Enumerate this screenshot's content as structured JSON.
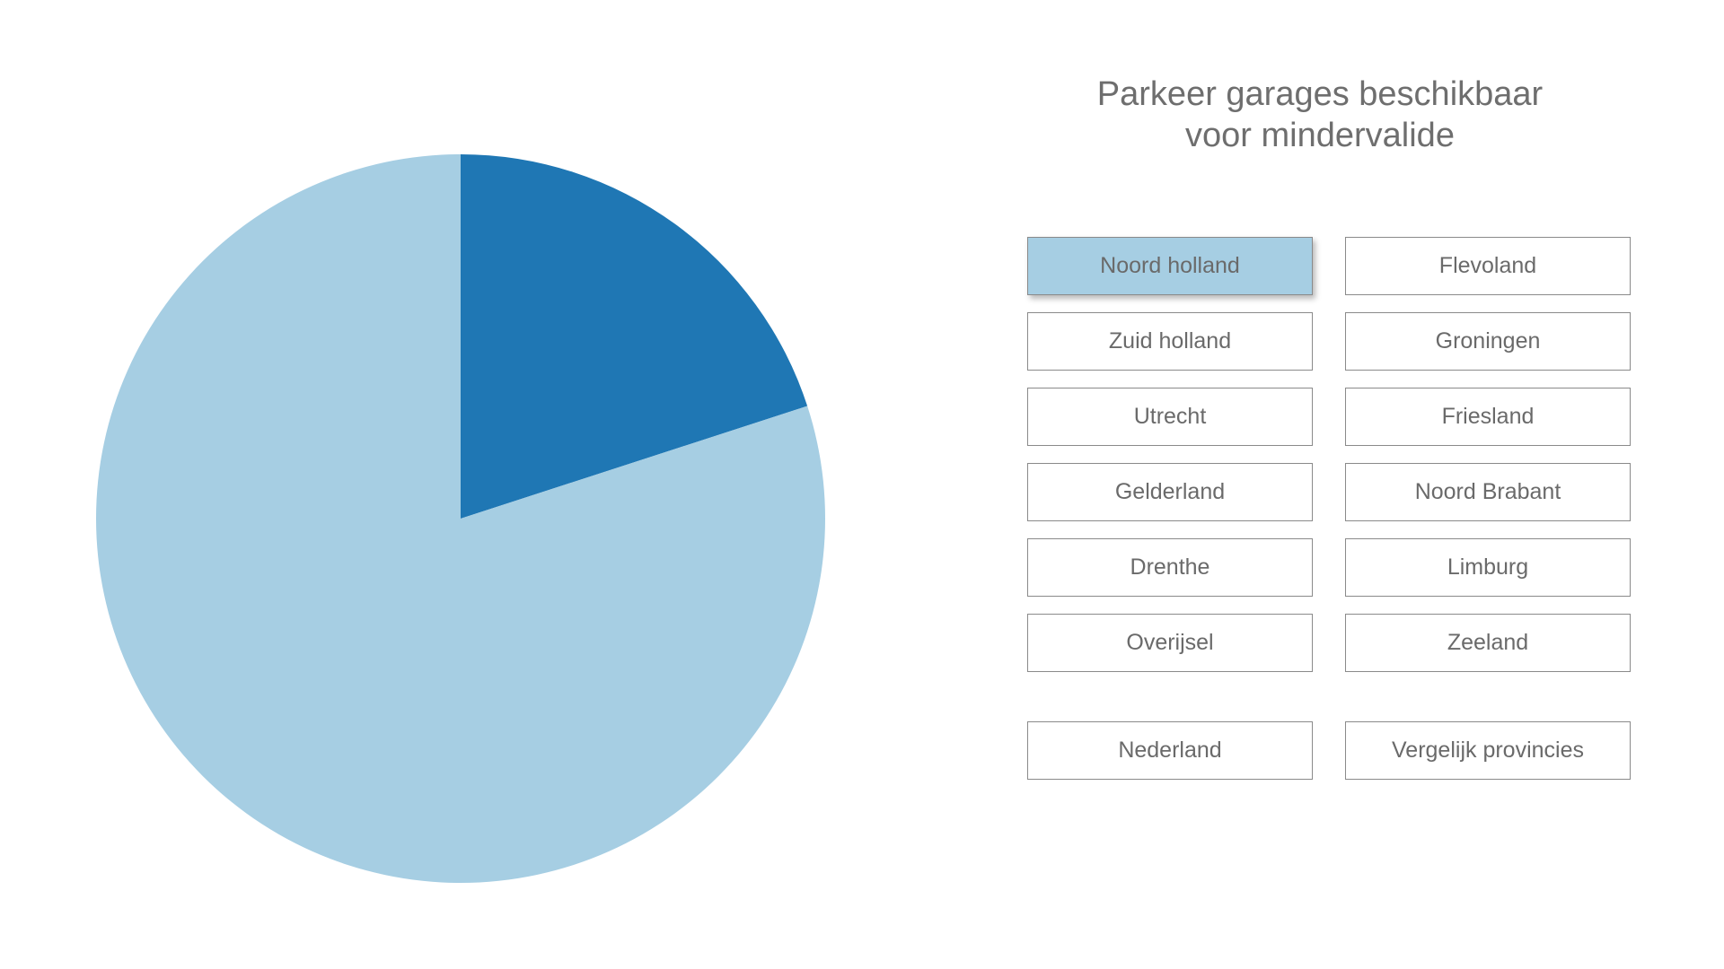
{
  "title_lines": [
    "Parkeer garages beschikbaar",
    "voor mindervalide"
  ],
  "buttons": {
    "noord_holland": "Noord holland",
    "flevoland": "Flevoland",
    "zuid_holland": "Zuid holland",
    "groningen": "Groningen",
    "utrecht": "Utrecht",
    "friesland": "Friesland",
    "gelderland": "Gelderland",
    "noord_brabant": "Noord Brabant",
    "drenthe": "Drenthe",
    "limburg": "Limburg",
    "overijsel": "Overijsel",
    "zeeland": "Zeeland",
    "nederland": "Nederland",
    "vergelijk": "Vergelijk provincies"
  },
  "selected_province": "Noord holland",
  "colors": {
    "accent_dark": "#1f77b4",
    "accent_light": "#a6cee3",
    "text": "#6e6e6e"
  },
  "chart_data": {
    "type": "pie",
    "title": "Parkeer garages beschikbaar voor mindervalide",
    "start_angle": "12 o'clock, clockwise",
    "slices": [
      {
        "value": 20,
        "color": "#1f77b4"
      },
      {
        "value": 80,
        "color": "#a6cee3"
      }
    ]
  }
}
